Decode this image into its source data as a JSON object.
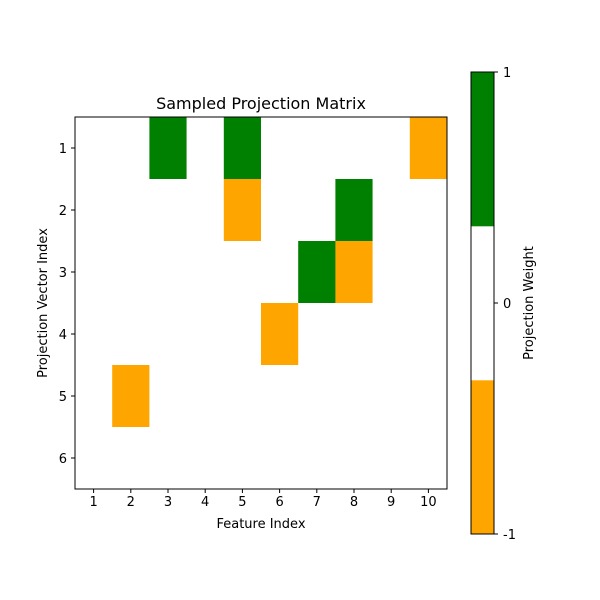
{
  "chart_data": {
    "type": "heatmap",
    "title": "Sampled Projection Matrix",
    "xlabel": "Feature Index",
    "ylabel": "Projection Vector Index",
    "x_ticks": [
      "1",
      "2",
      "3",
      "4",
      "5",
      "6",
      "7",
      "8",
      "9",
      "10"
    ],
    "y_ticks": [
      "1",
      "2",
      "3",
      "4",
      "5",
      "6"
    ],
    "matrix": [
      [
        0,
        0,
        1,
        0,
        1,
        0,
        0,
        0,
        0,
        -1
      ],
      [
        0,
        0,
        0,
        0,
        -1,
        0,
        0,
        1,
        0,
        0
      ],
      [
        0,
        0,
        0,
        0,
        0,
        0,
        1,
        -1,
        0,
        0
      ],
      [
        0,
        0,
        0,
        0,
        0,
        -1,
        0,
        0,
        0,
        0
      ],
      [
        0,
        -1,
        0,
        0,
        0,
        0,
        0,
        0,
        0,
        0
      ],
      [
        0,
        0,
        0,
        0,
        0,
        0,
        0,
        0,
        0,
        0
      ]
    ],
    "colormap": [
      {
        "value": -1,
        "color": "#ffa500"
      },
      {
        "value": 0,
        "color": "#ffffff"
      },
      {
        "value": 1,
        "color": "#008000"
      }
    ],
    "colorbar": {
      "label": "Projection Weight",
      "ticks": [
        "-1",
        "0",
        "1"
      ],
      "range": [
        -1,
        1
      ]
    },
    "grid": false
  }
}
